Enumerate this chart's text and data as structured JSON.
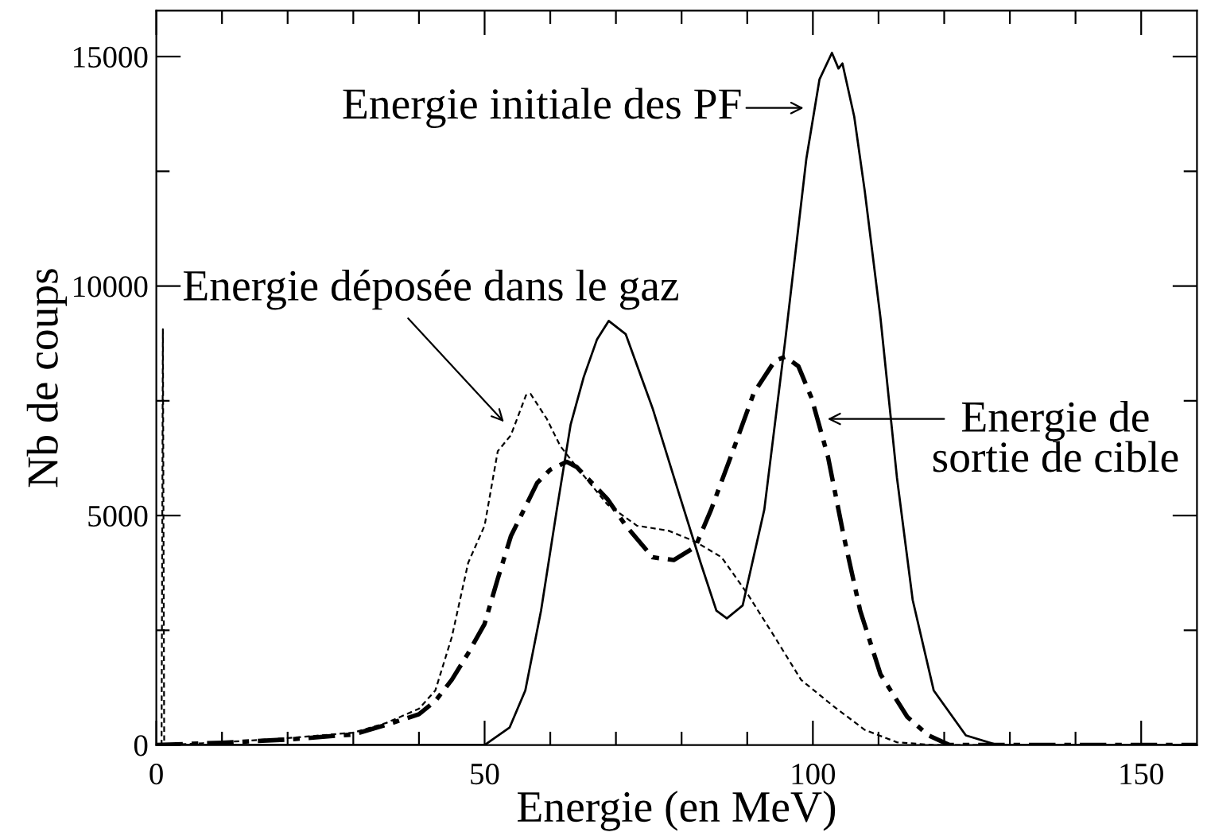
{
  "chart_data": {
    "type": "line",
    "xlabel": "Energie (en MeV)",
    "ylabel": "Nb de coups",
    "xlim": [
      0,
      158.5
    ],
    "ylim": [
      0,
      16000
    ],
    "xticks": [
      0,
      50,
      100,
      150
    ],
    "yticks": [
      0,
      5000,
      10000,
      15000
    ],
    "grid": false,
    "legend": false,
    "marker": "none",
    "series": [
      {
        "color": "#000000",
        "line_style": "solid",
        "x": [
          0,
          50,
          53.8,
          56.2,
          58.6,
          61.0,
          63.1,
          65.1,
          67.1,
          68.9,
          71.5,
          75.6,
          79.6,
          82.9,
          85.3,
          86.9,
          89.3,
          92.6,
          95.8,
          99.0,
          101.0,
          102.9,
          103.9,
          104.5,
          106.3,
          107.9,
          110.3,
          112.8,
          115.2,
          118.4,
          123.3,
          128.1,
          158.5
        ],
        "values": [
          0,
          0,
          380,
          1190,
          2930,
          5130,
          6980,
          8020,
          8830,
          9240,
          8950,
          7330,
          5480,
          3970,
          2930,
          2760,
          3040,
          5130,
          8830,
          12770,
          14500,
          15080,
          14740,
          14850,
          13690,
          12070,
          9300,
          5830,
          3160,
          1190,
          210,
          0,
          0
        ]
      },
      {
        "color": "#000000",
        "line_style": "dashed",
        "x": [
          0.8,
          1.0,
          1.2,
          10,
          20,
          30,
          35,
          40,
          42.5,
          45,
          47.5,
          50,
          52,
          54,
          56.3,
          57,
          59.5,
          61.5,
          64,
          68.7,
          73.2,
          78.0,
          82.1,
          86.1,
          90.1,
          94.2,
          98.2,
          103.1,
          107.9,
          112.8,
          118.4,
          158.5
        ],
        "values": [
          0,
          9060,
          0,
          60,
          150,
          270,
          480,
          790,
          1190,
          2350,
          3970,
          4780,
          6400,
          6750,
          7620,
          7650,
          7100,
          6520,
          6060,
          5240,
          4780,
          4670,
          4430,
          4090,
          3280,
          2350,
          1420,
          850,
          330,
          60,
          0,
          0
        ]
      },
      {
        "color": "#000000",
        "line_style": "dashdot",
        "x": [
          0,
          10,
          20,
          30,
          35,
          40,
          42.5,
          45,
          47.5,
          50,
          52,
          54,
          56,
          58,
          60,
          62.5,
          64,
          68.7,
          71.5,
          75.6,
          78.8,
          82.1,
          84.5,
          87.8,
          91.0,
          94.2,
          95.8,
          97.8,
          99.8,
          102.3,
          104.7,
          107.2,
          110.3,
          114.4,
          117.6,
          120.8,
          158.5
        ],
        "values": [
          0,
          50,
          120,
          230,
          440,
          670,
          960,
          1420,
          2000,
          2640,
          3620,
          4550,
          5130,
          5710,
          6000,
          6170,
          6060,
          5360,
          4780,
          4090,
          4030,
          4320,
          5130,
          6400,
          7670,
          8370,
          8460,
          8250,
          7560,
          6280,
          4550,
          2930,
          1540,
          610,
          210,
          0,
          0
        ]
      }
    ],
    "annotations": [
      "Energie initiale des PF",
      "Energie déposée dans le gaz",
      "Energie de\nsortie de cible"
    ]
  }
}
